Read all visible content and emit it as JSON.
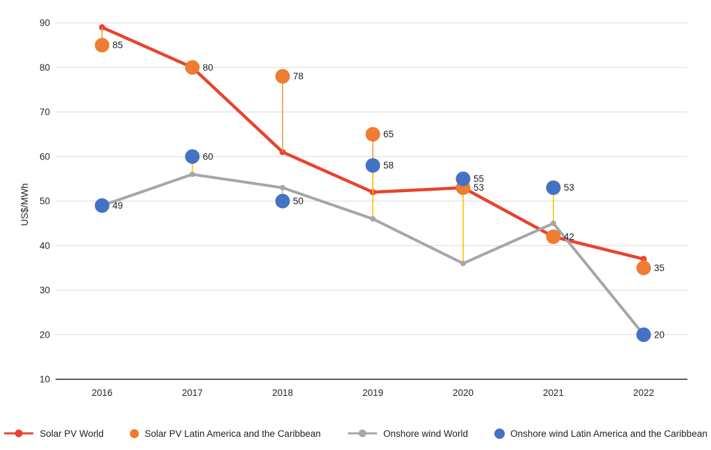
{
  "page": {
    "background_color": "#ffffff",
    "text_color": "#262626"
  },
  "chart_data": {
    "type": "line",
    "title": "",
    "xlabel": "",
    "ylabel": "US$/MWh",
    "ylim": [
      10,
      90
    ],
    "yticks": [
      10,
      20,
      30,
      40,
      50,
      60,
      70,
      80,
      90
    ],
    "grid": true,
    "gridline_color": "#d9d9d9",
    "axis_line_color": "#262626",
    "legend_position": "bottom",
    "categories": [
      "2016",
      "2017",
      "2018",
      "2019",
      "2020",
      "2021",
      "2022"
    ],
    "series": [
      {
        "name": "Solar PV World",
        "style": "line-marker",
        "color": "#e8432d",
        "line_width": 4.5,
        "marker_radius": 4.5,
        "values": [
          89,
          80,
          61,
          52,
          53,
          42,
          37
        ],
        "data_labels": false
      },
      {
        "name": "Solar PV Latin America and the Caribbean",
        "style": "points",
        "color": "#ed7d31",
        "marker_radius": 10.5,
        "values": [
          85,
          80,
          78,
          65,
          53,
          42,
          35
        ],
        "data_labels": true,
        "connector_to": 0,
        "connector_color": "#ed9c4a"
      },
      {
        "name": "Onshore wind World",
        "style": "line-marker",
        "color": "#a6a6a6",
        "line_width": 4,
        "marker_radius": 4,
        "values": [
          49,
          56,
          53,
          46,
          36,
          45,
          20
        ],
        "data_labels": false
      },
      {
        "name": "Onshore wind Latin America and the Caribbean",
        "style": "points",
        "color": "#4472c4",
        "marker_radius": 10.5,
        "values": [
          49,
          60,
          50,
          58,
          55,
          53,
          20
        ],
        "data_labels": true,
        "connector_to": 2,
        "connector_color": "#ffc000"
      }
    ]
  }
}
